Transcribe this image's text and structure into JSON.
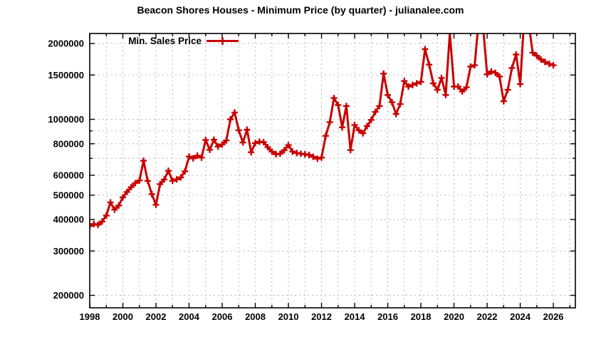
{
  "title": "Beacon Shores Houses - Minimum Price (by quarter) - julianalee.com",
  "colors": {
    "line": "#c80000",
    "grid": "#b8b8b8",
    "border": "#000000",
    "background": "#ffffff",
    "text": "#000000"
  },
  "legend": {
    "label": "Min. Sales Price"
  },
  "chart_data": {
    "type": "line",
    "title": "Beacon Shores Houses - Minimum Price (by quarter) - julianalee.com",
    "xlabel": "",
    "ylabel": "",
    "legend_position": "top-left-inside",
    "grid": true,
    "x_range": [
      1998,
      2027.33
    ],
    "y_range": [
      178500,
      2193000
    ],
    "y_scale": "log",
    "x_axis": {
      "major_label_years": [
        1998,
        2000,
        2002,
        2004,
        2006,
        2008,
        2010,
        2012,
        2014,
        2016,
        2018,
        2020,
        2022,
        2024,
        2026
      ],
      "labels": [
        "1998",
        "2000",
        "2002",
        "2004",
        "2006",
        "2008",
        "2010",
        "2012",
        "2014",
        "2016",
        "2018",
        "2020",
        "2022",
        "2024",
        "2026"
      ],
      "minor_tick_every_years": 1,
      "first_grid_year": 1999,
      "last_grid_year": 2027
    },
    "y_axis": {
      "ticks": [
        {
          "value": 200000,
          "label": "200000"
        },
        {
          "value": 300000,
          "label": "300000"
        },
        {
          "value": 400000,
          "label": "400000"
        },
        {
          "value": 500000,
          "label": "500000"
        },
        {
          "value": 600000,
          "label": "600000"
        },
        {
          "value": 700000,
          "label": ""
        },
        {
          "value": 800000,
          "label": "800000"
        },
        {
          "value": 900000,
          "label": ""
        },
        {
          "value": 1000000,
          "label": "1000000"
        },
        {
          "value": 1500000,
          "label": "1500000"
        },
        {
          "value": 2000000,
          "label": "2000000"
        }
      ]
    },
    "series": [
      {
        "name": "Min. Sales Price",
        "color": "#c80000",
        "marker": "plus",
        "line_width": 3,
        "start_year": 1998,
        "interval_years": 0.25,
        "note": "quarterly minimum sale price, USD; values above y-axis top are clipped at plot border",
        "values": [
          377000,
          384000,
          381000,
          393000,
          415000,
          468000,
          438000,
          455000,
          490000,
          515000,
          538000,
          558000,
          572000,
          685000,
          570000,
          505000,
          458000,
          553000,
          577000,
          625000,
          570000,
          578000,
          588000,
          622000,
          712000,
          700000,
          718000,
          705000,
          828000,
          757000,
          830000,
          780000,
          795000,
          825000,
          1000000,
          1065000,
          905000,
          810000,
          910000,
          740000,
          805000,
          815000,
          812000,
          775000,
          745000,
          727000,
          730000,
          755000,
          790000,
          745000,
          735000,
          730000,
          727000,
          722000,
          710000,
          698000,
          705000,
          860000,
          975000,
          1215000,
          1140000,
          930000,
          1130000,
          755000,
          950000,
          905000,
          880000,
          940000,
          995000,
          1070000,
          1130000,
          1520000,
          1250000,
          1170000,
          1050000,
          1150000,
          1420000,
          1350000,
          1370000,
          1390000,
          1410000,
          1900000,
          1650000,
          1390000,
          1310000,
          1460000,
          1250000,
          2200000,
          1350000,
          1350000,
          1290000,
          1340000,
          1620000,
          1640000,
          2500000,
          2350000,
          1510000,
          1550000,
          1530000,
          1480000,
          1180000,
          1310000,
          1600000,
          1810000,
          1380000,
          2600000,
          2450000,
          1840000,
          1790000,
          1730000,
          1690000,
          1660000,
          1640000
        ]
      }
    ]
  }
}
